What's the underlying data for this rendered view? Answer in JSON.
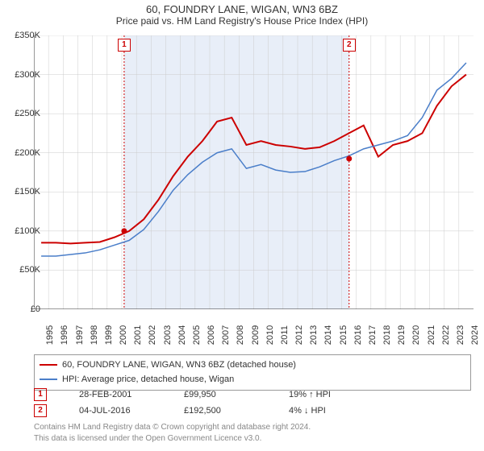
{
  "title": "60, FOUNDRY LANE, WIGAN, WN3 6BZ",
  "subtitle": "Price paid vs. HM Land Registry's House Price Index (HPI)",
  "chart": {
    "type": "line",
    "ylim": [
      0,
      350000
    ],
    "ytick_step": 50000,
    "yticks": [
      "£0",
      "£50K",
      "£100K",
      "£150K",
      "£200K",
      "£250K",
      "£300K",
      "£350K"
    ],
    "x_years": [
      1995,
      1996,
      1997,
      1998,
      1999,
      2000,
      2001,
      2002,
      2003,
      2004,
      2005,
      2006,
      2007,
      2008,
      2009,
      2010,
      2011,
      2012,
      2013,
      2014,
      2015,
      2016,
      2017,
      2018,
      2019,
      2020,
      2021,
      2022,
      2023,
      2024
    ],
    "background_color": "#ffffff",
    "grid_color": "#cccccc",
    "axis_color": "#333333",
    "series": [
      {
        "name": "60, FOUNDRY LANE, WIGAN, WN3 6BZ (detached house)",
        "color": "#cc0000",
        "width": 2,
        "values": [
          85000,
          85000,
          84000,
          85000,
          86000,
          92000,
          99950,
          115000,
          140000,
          170000,
          195000,
          215000,
          240000,
          245000,
          210000,
          215000,
          210000,
          208000,
          205000,
          207000,
          215000,
          225000,
          235000,
          195000,
          210000,
          215000,
          225000,
          260000,
          285000,
          300000
        ]
      },
      {
        "name": "HPI: Average price, detached house, Wigan",
        "color": "#4a7ec9",
        "width": 1.5,
        "values": [
          68000,
          68000,
          70000,
          72000,
          76000,
          82000,
          88000,
          102000,
          125000,
          152000,
          172000,
          188000,
          200000,
          205000,
          180000,
          185000,
          178000,
          175000,
          176000,
          182000,
          190000,
          196000,
          205000,
          210000,
          215000,
          222000,
          245000,
          280000,
          295000,
          315000
        ]
      }
    ],
    "sale_markers": [
      {
        "id": 1,
        "year_frac": 2001.16,
        "price": 99950
      },
      {
        "id": 2,
        "year_frac": 2016.51,
        "price": 192500
      }
    ],
    "shaded_band": {
      "from": 2001.16,
      "to": 2016.51,
      "fill": "#e8eef8"
    },
    "marker_line_color": "#cc0000",
    "title_fontsize": 13,
    "subtitle_fontsize": 12,
    "tick_fontsize": 11
  },
  "legend": {
    "items": [
      {
        "color": "#cc0000",
        "label": "60, FOUNDRY LANE, WIGAN, WN3 6BZ (detached house)"
      },
      {
        "color": "#4a7ec9",
        "label": "HPI: Average price, detached house, Wigan"
      }
    ]
  },
  "sales": [
    {
      "id": "1",
      "date": "28-FEB-2001",
      "price": "£99,950",
      "delta": "19% ↑ HPI"
    },
    {
      "id": "2",
      "date": "04-JUL-2016",
      "price": "£192,500",
      "delta": "4% ↓ HPI"
    }
  ],
  "footnote_line1": "Contains HM Land Registry data © Crown copyright and database right 2024.",
  "footnote_line2": "This data is licensed under the Open Government Licence v3.0."
}
